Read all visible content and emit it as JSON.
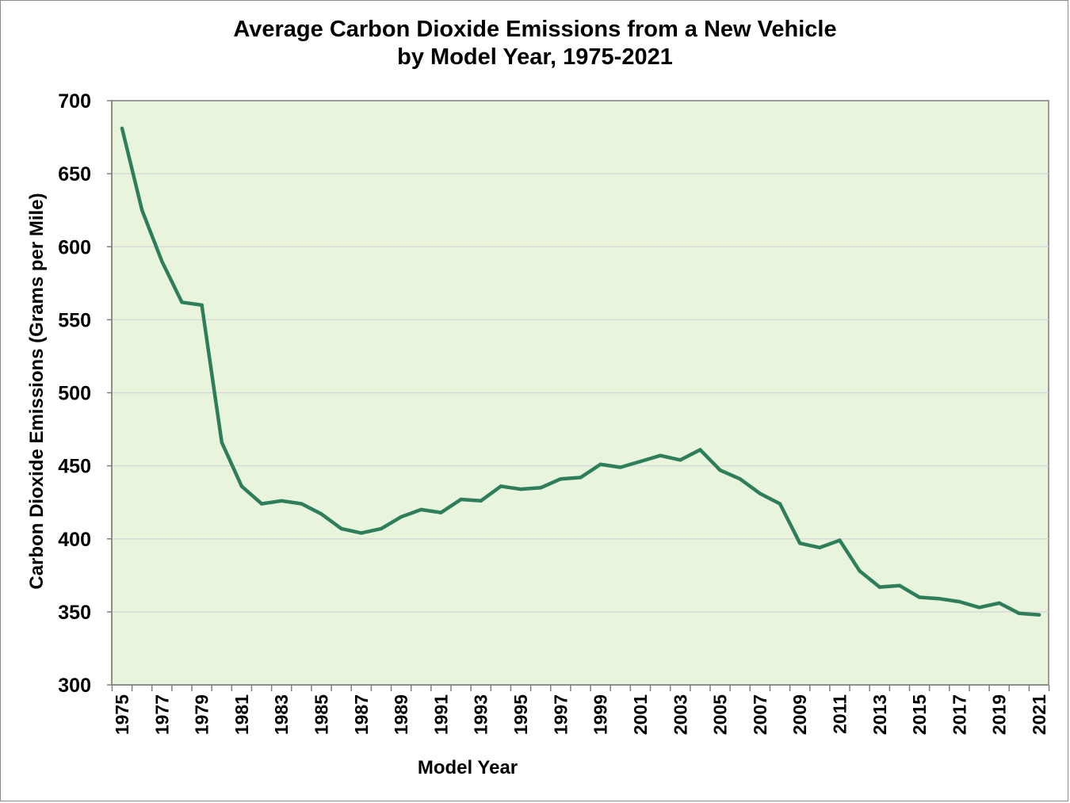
{
  "chart_data": {
    "type": "line",
    "title_line1": "Average Carbon Dioxide Emissions from a New Vehicle",
    "title_line2": "by Model Year, 1975-2021",
    "xlabel": "Model Year",
    "ylabel": "Carbon Dioxide Emissions (Grams per Mile)",
    "ylim": [
      300,
      700
    ],
    "yticks": [
      300,
      350,
      400,
      450,
      500,
      550,
      600,
      650,
      700
    ],
    "xlim": [
      1975,
      2021
    ],
    "xtick_labels": [
      "1975",
      "1977",
      "1979",
      "1981",
      "1983",
      "1985",
      "1987",
      "1989",
      "1991",
      "1993",
      "1995",
      "1997",
      "1999",
      "2001",
      "2003",
      "2005",
      "2007",
      "2009",
      "2011",
      "2013",
      "2015",
      "2017",
      "2019",
      "2021"
    ],
    "grid": true,
    "colors": {
      "line": "#2e7d5b",
      "plot_bg": "#e8f5dc",
      "grid": "#d9d9d9",
      "axis": "#7f7f7f"
    },
    "series": [
      {
        "name": "CO2 Emissions",
        "x": [
          1975,
          1976,
          1977,
          1978,
          1979,
          1980,
          1981,
          1982,
          1983,
          1984,
          1985,
          1986,
          1987,
          1988,
          1989,
          1990,
          1991,
          1992,
          1993,
          1994,
          1995,
          1996,
          1997,
          1998,
          1999,
          2000,
          2001,
          2002,
          2003,
          2004,
          2005,
          2006,
          2007,
          2008,
          2009,
          2010,
          2011,
          2012,
          2013,
          2014,
          2015,
          2016,
          2017,
          2018,
          2019,
          2020,
          2021
        ],
        "values": [
          681,
          625,
          590,
          562,
          560,
          466,
          436,
          424,
          426,
          424,
          417,
          407,
          404,
          407,
          415,
          420,
          418,
          427,
          426,
          436,
          434,
          435,
          441,
          442,
          451,
          449,
          453,
          457,
          454,
          461,
          447,
          441,
          431,
          424,
          397,
          394,
          399,
          378,
          367,
          368,
          360,
          359,
          357,
          353,
          356,
          349,
          348
        ]
      }
    ]
  }
}
